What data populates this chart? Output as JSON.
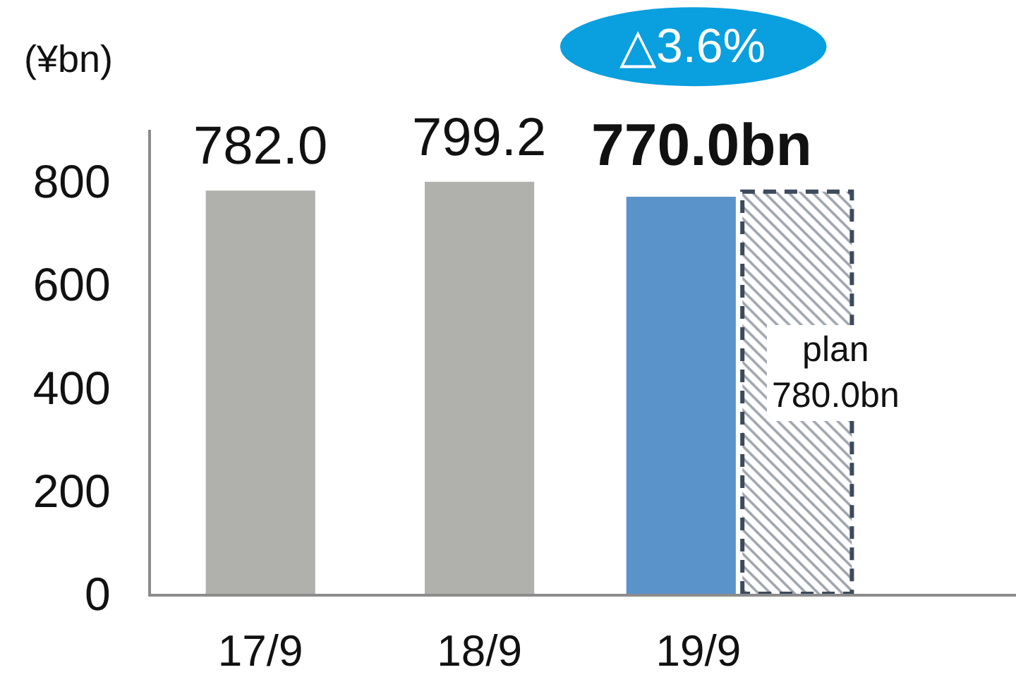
{
  "chart_data": {
    "type": "bar",
    "ylabel": "(¥bn)",
    "categories": [
      "17/9",
      "18/9",
      "19/9"
    ],
    "ylim": [
      0,
      900
    ],
    "yticks": [
      0,
      200,
      400,
      600,
      800
    ],
    "grid": false,
    "legend": false,
    "annotations": [
      "△3.6%"
    ],
    "series": [
      {
        "colors": [
          "#b0b1ad",
          "#b0b1ad",
          "#5a93c9"
        ],
        "values": [
          782.0,
          799.2,
          770.0
        ],
        "value_labels": [
          "782.0",
          "799.2",
          "770.0bn"
        ]
      },
      {
        "name": "plan",
        "color": "#3d4a5c",
        "line_style": "dashed",
        "values": [
          null,
          null,
          780.0
        ],
        "value_labels": [
          null,
          null,
          "780.0bn"
        ]
      }
    ]
  }
}
